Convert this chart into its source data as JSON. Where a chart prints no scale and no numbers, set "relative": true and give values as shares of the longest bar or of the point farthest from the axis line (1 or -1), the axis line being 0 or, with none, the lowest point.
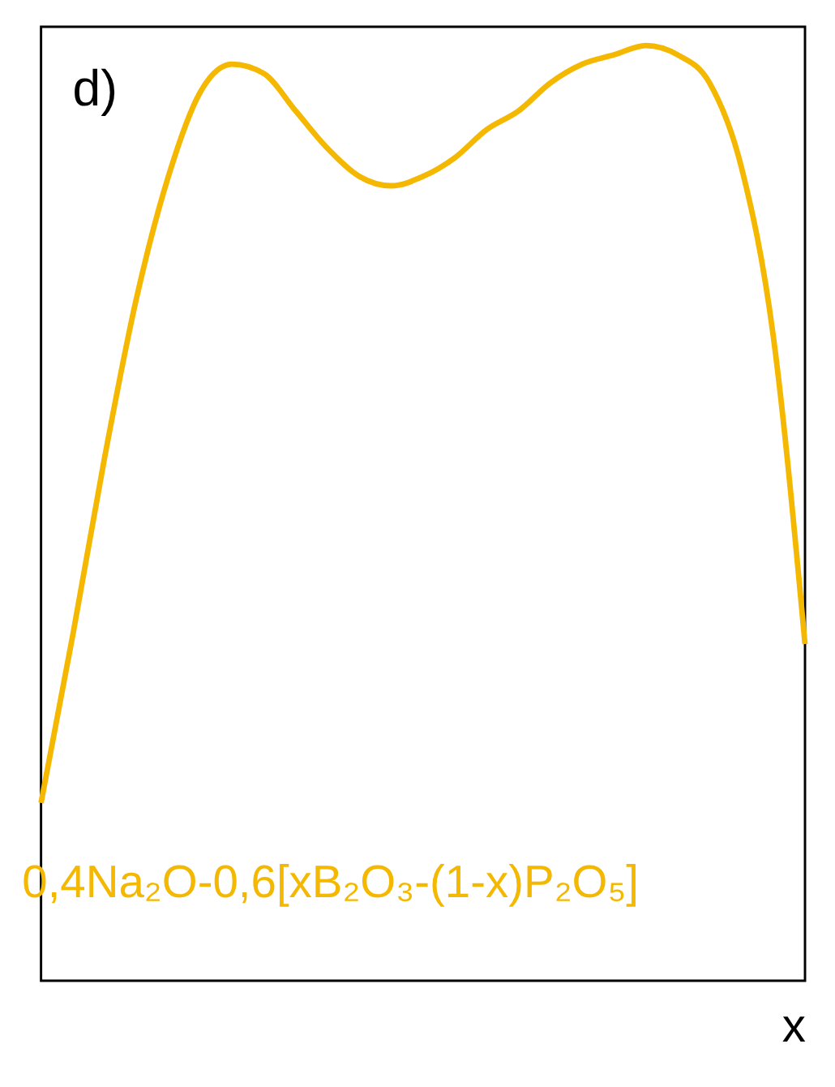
{
  "chart_data": {
    "type": "line",
    "relative": true,
    "xlabel": "x",
    "annotations": [
      "d)",
      "0,4Na₂O-0,6[xB₂O₃-(1-x)P₂O₅]"
    ],
    "categories": [
      null,
      null,
      null,
      null,
      null,
      null,
      null,
      null,
      null,
      null,
      null,
      null,
      null,
      null,
      null,
      null,
      null,
      null,
      null,
      null,
      null,
      null,
      null,
      null,
      null
    ],
    "series": [
      {
        "color": "#f5b800",
        "values": [
          0.19,
          0.37,
          0.56,
          0.73,
          0.86,
          0.95,
          0.98,
          0.97,
          0.93,
          0.89,
          0.86,
          0.85,
          0.86,
          0.88,
          0.91,
          0.93,
          0.96,
          0.98,
          0.99,
          1.0,
          0.99,
          0.96,
          0.87,
          0.69,
          0.36
        ]
      }
    ],
    "marker": "none",
    "line_style": "solid",
    "grid": false
  }
}
